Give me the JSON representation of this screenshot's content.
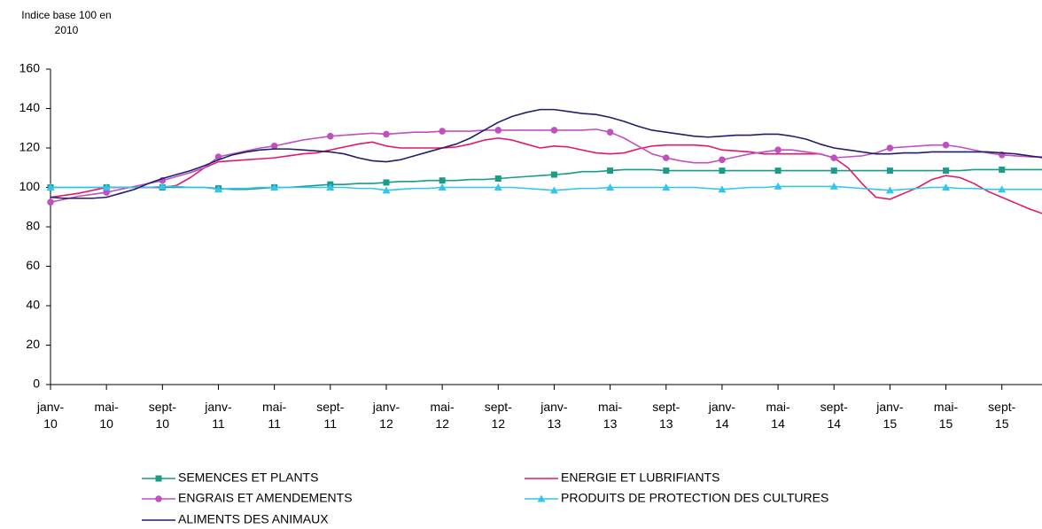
{
  "chart_data": {
    "type": "line",
    "y_label": "Indice base 100 en 2010",
    "categories": [
      "janv-10",
      null,
      null,
      null,
      "mai-10",
      null,
      null,
      null,
      "sept-10",
      null,
      null,
      null,
      "janv-11",
      null,
      null,
      null,
      "mai-11",
      null,
      null,
      null,
      "sept-11",
      null,
      null,
      null,
      "janv-12",
      null,
      null,
      null,
      "mai-12",
      null,
      null,
      null,
      "sept-12",
      null,
      null,
      null,
      "janv-13",
      null,
      null,
      null,
      "mai-13",
      null,
      null,
      null,
      "sept-13",
      null,
      null,
      null,
      "janv-14",
      null,
      null,
      null,
      "mai-14",
      null,
      null,
      null,
      "sept-14",
      null,
      null,
      null,
      "janv-15",
      null,
      null,
      null,
      "mai-15",
      null,
      null,
      null,
      "sept-15",
      null,
      null,
      null
    ],
    "ylim": [
      0,
      160
    ],
    "yticks": [
      0,
      20,
      40,
      60,
      80,
      100,
      120,
      140,
      160
    ],
    "grid": false,
    "series": [
      {
        "name": "SEMENCES ET PLANTS",
        "color": "#1a9c88",
        "marker": "square",
        "values": [
          100,
          100,
          100,
          100,
          100,
          100,
          100,
          100,
          100,
          100,
          100,
          100,
          99.5,
          99,
          99,
          99.5,
          100,
          100,
          100.5,
          101,
          101.5,
          101.5,
          102,
          102,
          102.5,
          103,
          103,
          103.5,
          103.5,
          103.5,
          104,
          104,
          104.5,
          105,
          105.5,
          106,
          106.5,
          107,
          108,
          108,
          108.5,
          109,
          109,
          109,
          108.5,
          108.5,
          108.5,
          108.5,
          108.5,
          108.5,
          108.5,
          108.5,
          108.5,
          108.5,
          108.5,
          108.5,
          108.5,
          108.5,
          108.5,
          108.5,
          108.5,
          108.5,
          108.5,
          108.5,
          108.5,
          108.5,
          109,
          109,
          109,
          109,
          109,
          109
        ]
      },
      {
        "name": "ENERGIE ET LUBRIFIANTS",
        "color": "#e3186a",
        "marker": "none",
        "values": [
          95,
          96,
          97,
          98.5,
          100,
          100,
          100,
          100,
          100,
          101,
          105,
          110,
          113,
          113.5,
          114,
          114.5,
          115,
          116,
          117,
          117.5,
          119,
          120.5,
          122,
          123,
          121,
          120,
          120,
          120,
          120,
          120.5,
          122,
          124,
          125,
          124,
          122,
          120,
          121,
          120.5,
          119,
          117.5,
          117,
          117.5,
          119.5,
          121,
          121.5,
          121.5,
          121.5,
          121,
          119,
          118.5,
          118,
          117,
          117,
          117,
          117,
          117,
          115,
          110,
          102,
          95,
          94,
          97,
          100,
          104,
          106,
          105,
          102,
          98,
          95,
          92,
          89,
          86.5
        ]
      },
      {
        "name": "ENGRAIS ET AMENDEMENTS",
        "color": "#c050c0",
        "marker": "circle",
        "values": [
          92.5,
          94,
          95.5,
          96.5,
          97.5,
          99,
          100.5,
          102,
          103.5,
          105.5,
          107.5,
          110,
          115.5,
          117,
          118.5,
          120,
          121,
          122.5,
          124,
          125,
          126,
          126.5,
          127,
          127.5,
          127,
          127.5,
          128,
          128,
          128.5,
          128.5,
          128.5,
          129,
          129,
          129,
          129,
          129,
          129,
          129,
          129,
          129.5,
          128,
          125,
          121,
          117,
          115,
          113.5,
          112.5,
          112.5,
          114,
          115.5,
          117,
          118,
          119,
          119,
          118,
          117,
          115,
          115.5,
          116,
          117.5,
          120,
          120.5,
          121,
          121.5,
          121.5,
          120.5,
          119,
          117.5,
          116.5,
          116,
          115.5,
          115.5
        ]
      },
      {
        "name": "PRODUITS DE PROTECTION DES CULTURES",
        "color": "#33c6ec",
        "marker": "triangle",
        "values": [
          100,
          100,
          100,
          100,
          100,
          100,
          100,
          100,
          100.5,
          100.5,
          100,
          100,
          99,
          99.5,
          99.5,
          100,
          100,
          100,
          100,
          100,
          100,
          100,
          99.5,
          99.5,
          98.5,
          99,
          99.5,
          99.5,
          100,
          100,
          100,
          100,
          100,
          100,
          99.5,
          99,
          98.5,
          99,
          99.5,
          99.5,
          100,
          100,
          100,
          100,
          100,
          100,
          100,
          99.5,
          99,
          99.5,
          100,
          100,
          100.5,
          100.5,
          100.5,
          100.5,
          100.5,
          100,
          99.5,
          99,
          98.5,
          99,
          99.5,
          100,
          100,
          99.5,
          99.5,
          99,
          99,
          99,
          99,
          99
        ]
      },
      {
        "name": "ALIMENTS DES ANIMAUX",
        "color": "#1f1f6e",
        "marker": "none",
        "values": [
          95,
          94.5,
          94.5,
          94.5,
          95,
          97,
          99,
          102,
          104.5,
          106.5,
          108.5,
          111,
          114,
          116.5,
          118,
          119,
          119.5,
          119.5,
          119,
          118.5,
          118,
          117,
          115,
          113.5,
          113,
          114,
          116,
          118,
          120,
          122,
          125,
          129,
          133,
          136,
          138,
          139.5,
          139.5,
          138.5,
          137.5,
          137,
          135.5,
          133.5,
          131,
          129,
          128,
          127,
          126,
          125.5,
          126,
          126.5,
          126.5,
          127,
          127,
          126,
          124.5,
          122,
          120,
          119,
          118,
          117,
          117,
          117.5,
          117.5,
          118,
          118,
          118,
          118,
          118,
          117.5,
          117,
          116,
          115
        ]
      }
    ]
  }
}
